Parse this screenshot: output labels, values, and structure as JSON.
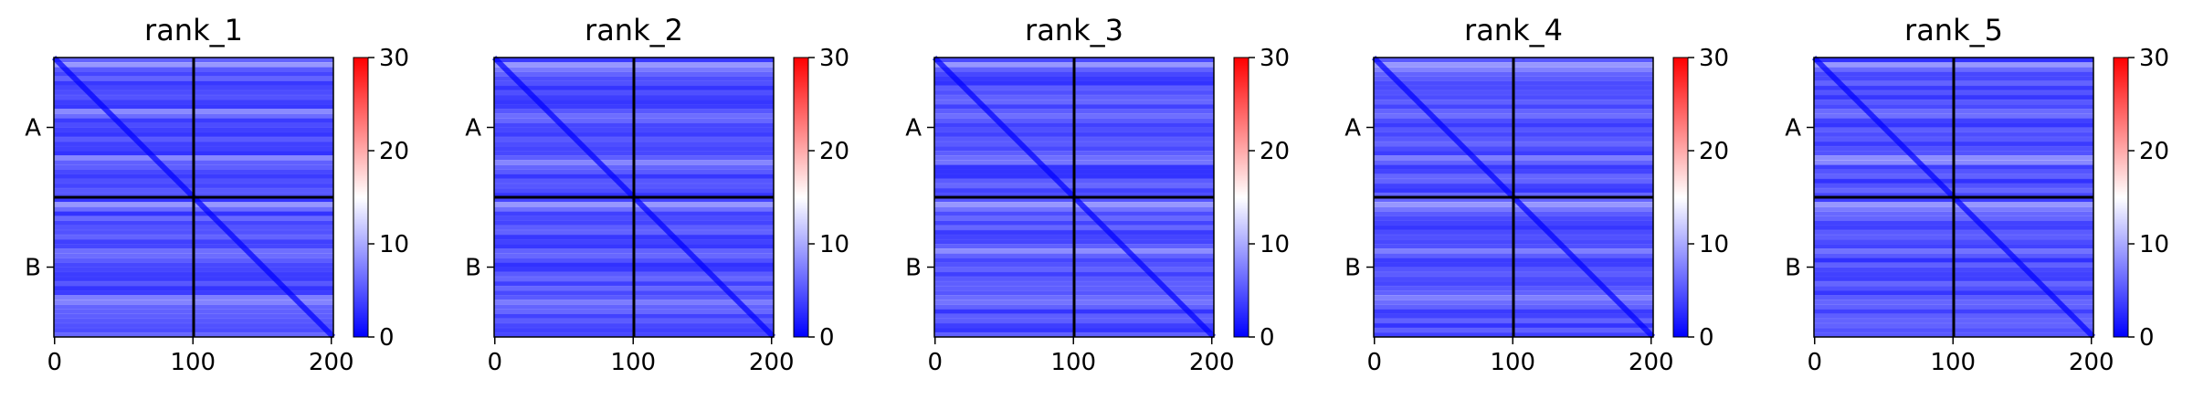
{
  "chart_data": {
    "type": "heatmap",
    "panels": [
      {
        "title": "rank_1"
      },
      {
        "title": "rank_2"
      },
      {
        "title": "rank_3"
      },
      {
        "title": "rank_4"
      },
      {
        "title": "rank_5"
      }
    ],
    "matrix_size": 202,
    "chain_boundary": 101,
    "chains": [
      "A",
      "B"
    ],
    "x_ticks": [
      "0",
      "100",
      "200"
    ],
    "x_tick_values": [
      0,
      100,
      200
    ],
    "colorbar": {
      "ticks": [
        "0",
        "10",
        "20",
        "30"
      ],
      "tick_values": [
        0,
        10,
        20,
        30
      ],
      "range": [
        0,
        30
      ],
      "colors": [
        "#0000ff",
        "#ffffff",
        "#ff0000"
      ]
    },
    "grid": false
  }
}
